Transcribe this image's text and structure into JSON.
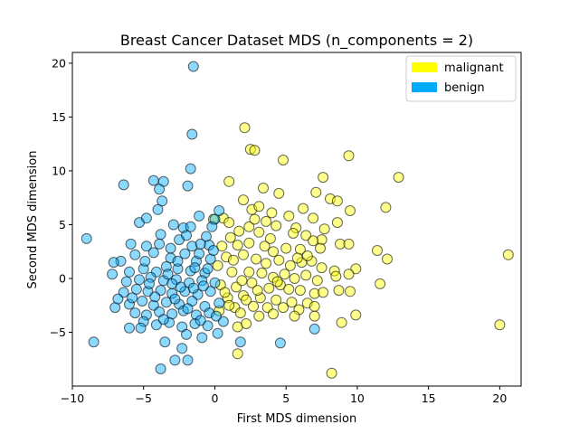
{
  "chart_data": {
    "type": "scatter",
    "title": "Breast Cancer Dataset MDS (n_components = 2)",
    "xlabel": "First MDS dimension",
    "ylabel": "Second MDS dimension",
    "xlim": [
      -10,
      21.5
    ],
    "ylim": [
      -10,
      21
    ],
    "xticks": [
      -10,
      -5,
      0,
      5,
      10,
      15,
      20
    ],
    "yticks": [
      -5,
      0,
      5,
      10,
      15,
      20
    ],
    "grid": false,
    "legend_position": "top-right",
    "series": [
      {
        "name": "malignant",
        "color": "#ffff00",
        "points": [
          [
            2.1,
            14.0
          ],
          [
            2.5,
            12.0
          ],
          [
            2.8,
            11.9
          ],
          [
            9.4,
            11.4
          ],
          [
            4.8,
            11.0
          ],
          [
            7.6,
            9.4
          ],
          [
            12.9,
            9.4
          ],
          [
            1.0,
            9.0
          ],
          [
            3.4,
            8.4
          ],
          [
            4.5,
            7.9
          ],
          [
            7.1,
            8.0
          ],
          [
            8.1,
            7.4
          ],
          [
            8.6,
            7.2
          ],
          [
            12.0,
            6.6
          ],
          [
            2.0,
            7.3
          ],
          [
            6.2,
            6.5
          ],
          [
            2.6,
            6.4
          ],
          [
            3.1,
            6.7
          ],
          [
            9.5,
            6.3
          ],
          [
            3.6,
            5.3
          ],
          [
            -0.1,
            5.5
          ],
          [
            0.6,
            5.6
          ],
          [
            1.0,
            5.2
          ],
          [
            5.2,
            5.8
          ],
          [
            6.9,
            5.6
          ],
          [
            8.6,
            5.2
          ],
          [
            5.7,
            4.7
          ],
          [
            7.7,
            4.6
          ],
          [
            2.4,
            4.8
          ],
          [
            4.3,
            4.9
          ],
          [
            1.7,
            4.4
          ],
          [
            3.1,
            4.3
          ],
          [
            5.5,
            4.2
          ],
          [
            6.4,
            4.0
          ],
          [
            7.5,
            3.6
          ],
          [
            8.8,
            3.2
          ],
          [
            9.4,
            3.2
          ],
          [
            0.5,
            3.0
          ],
          [
            1.6,
            3.1
          ],
          [
            2.4,
            3.3
          ],
          [
            3.5,
            3.0
          ],
          [
            4.1,
            2.5
          ],
          [
            5.0,
            2.8
          ],
          [
            6.0,
            2.7
          ],
          [
            6.9,
            3.5
          ],
          [
            7.4,
            2.8
          ],
          [
            11.4,
            2.6
          ],
          [
            20.6,
            2.2
          ],
          [
            12.1,
            1.8
          ],
          [
            0.8,
            2.0
          ],
          [
            1.3,
            1.7
          ],
          [
            2.0,
            2.2
          ],
          [
            2.9,
            1.8
          ],
          [
            3.6,
            1.4
          ],
          [
            4.5,
            1.7
          ],
          [
            5.3,
            1.2
          ],
          [
            6.1,
            1.5
          ],
          [
            6.8,
            1.6
          ],
          [
            7.5,
            1.0
          ],
          [
            8.4,
            0.7
          ],
          [
            9.9,
            0.9
          ],
          [
            1.2,
            0.6
          ],
          [
            2.4,
            0.6
          ],
          [
            3.3,
            0.5
          ],
          [
            4.1,
            0.1
          ],
          [
            4.9,
            0.4
          ],
          [
            5.6,
            0.0
          ],
          [
            6.4,
            0.3
          ],
          [
            7.2,
            -0.2
          ],
          [
            8.5,
            0.2
          ],
          [
            9.4,
            0.4
          ],
          [
            0.4,
            -0.6
          ],
          [
            1.5,
            -0.8
          ],
          [
            2.6,
            -0.4
          ],
          [
            3.8,
            -0.9
          ],
          [
            4.6,
            -0.6
          ],
          [
            5.2,
            -1.0
          ],
          [
            6.0,
            -1.1
          ],
          [
            7.0,
            -1.4
          ],
          [
            7.6,
            -1.3
          ],
          [
            8.7,
            -1.1
          ],
          [
            9.5,
            -1.2
          ],
          [
            11.6,
            -0.5
          ],
          [
            0.9,
            -1.8
          ],
          [
            2.0,
            -1.6
          ],
          [
            3.2,
            -1.8
          ],
          [
            4.3,
            -2.0
          ],
          [
            5.4,
            -2.2
          ],
          [
            6.5,
            -2.3
          ],
          [
            1.4,
            -2.7
          ],
          [
            2.7,
            -2.6
          ],
          [
            3.7,
            -2.7
          ],
          [
            4.8,
            -2.7
          ],
          [
            5.9,
            -2.9
          ],
          [
            7.0,
            -2.6
          ],
          [
            1.8,
            -3.2
          ],
          [
            3.1,
            -3.5
          ],
          [
            4.1,
            -3.3
          ],
          [
            5.6,
            -3.5
          ],
          [
            7.0,
            -3.5
          ],
          [
            9.9,
            -3.4
          ],
          [
            1.6,
            -4.5
          ],
          [
            2.2,
            -4.2
          ],
          [
            8.9,
            -4.1
          ],
          [
            20.0,
            -4.3
          ],
          [
            1.6,
            -7.0
          ],
          [
            8.2,
            -8.8
          ],
          [
            1.9,
            -0.2
          ],
          [
            3.0,
            -1.1
          ],
          [
            4.4,
            -0.3
          ],
          [
            5.8,
            1.9
          ],
          [
            2.2,
            -2.0
          ],
          [
            0.2,
            1.2
          ],
          [
            3.9,
            3.7
          ],
          [
            6.5,
            2.1
          ],
          [
            2.8,
            5.5
          ],
          [
            4.0,
            6.1
          ],
          [
            1.1,
            3.8
          ],
          [
            0.3,
            -3.0
          ],
          [
            1.0,
            -2.5
          ],
          [
            0.7,
            -1.3
          ]
        ]
      },
      {
        "name": "benign",
        "color": "#00aaff",
        "points": [
          [
            -1.5,
            19.7
          ],
          [
            -1.6,
            13.4
          ],
          [
            -1.7,
            10.2
          ],
          [
            -6.4,
            8.7
          ],
          [
            -4.3,
            9.1
          ],
          [
            -3.6,
            9.0
          ],
          [
            -3.9,
            8.3
          ],
          [
            -1.9,
            8.6
          ],
          [
            -3.7,
            7.2
          ],
          [
            -4.0,
            6.4
          ],
          [
            -1.1,
            5.8
          ],
          [
            -5.3,
            5.2
          ],
          [
            -4.8,
            5.6
          ],
          [
            0.0,
            5.5
          ],
          [
            -2.2,
            4.7
          ],
          [
            -1.7,
            4.8
          ],
          [
            -0.2,
            4.8
          ],
          [
            -9.0,
            3.7
          ],
          [
            -3.8,
            4.1
          ],
          [
            -2.5,
            3.6
          ],
          [
            -0.6,
            3.9
          ],
          [
            -5.9,
            3.2
          ],
          [
            -4.8,
            3.0
          ],
          [
            -3.1,
            2.8
          ],
          [
            -1.6,
            3.0
          ],
          [
            -0.4,
            3.1
          ],
          [
            -6.6,
            1.6
          ],
          [
            -5.6,
            2.2
          ],
          [
            -4.3,
            2.4
          ],
          [
            -3.1,
            1.9
          ],
          [
            -2.1,
            2.3
          ],
          [
            -1.3,
            1.6
          ],
          [
            -0.3,
            1.8
          ],
          [
            -7.1,
            1.5
          ],
          [
            -7.2,
            0.4
          ],
          [
            -6.0,
            0.6
          ],
          [
            -5.0,
            0.9
          ],
          [
            -4.1,
            0.6
          ],
          [
            -3.4,
            1.1
          ],
          [
            -2.6,
            0.9
          ],
          [
            -1.7,
            0.7
          ],
          [
            -0.7,
            0.5
          ],
          [
            -6.2,
            -0.3
          ],
          [
            -5.3,
            -0.1
          ],
          [
            -4.5,
            0.1
          ],
          [
            -3.6,
            -0.2
          ],
          [
            -2.7,
            -0.1
          ],
          [
            -1.8,
            -0.4
          ],
          [
            -0.9,
            -0.2
          ],
          [
            0.0,
            -0.4
          ],
          [
            -6.4,
            -1.3
          ],
          [
            -5.5,
            -1.0
          ],
          [
            -4.7,
            -1.2
          ],
          [
            -3.8,
            -1.1
          ],
          [
            -3.0,
            -1.4
          ],
          [
            -2.1,
            -1.2
          ],
          [
            -1.2,
            -1.5
          ],
          [
            -0.3,
            -1.2
          ],
          [
            -7.0,
            -2.7
          ],
          [
            -6.0,
            -2.4
          ],
          [
            -5.1,
            -2.1
          ],
          [
            -4.3,
            -2.5
          ],
          [
            -3.4,
            -2.2
          ],
          [
            -2.5,
            -2.4
          ],
          [
            -1.6,
            -2.1
          ],
          [
            -0.7,
            -2.6
          ],
          [
            0.3,
            -2.3
          ],
          [
            -5.6,
            -3.2
          ],
          [
            -4.8,
            -3.4
          ],
          [
            -3.9,
            -3.1
          ],
          [
            -3.0,
            -3.3
          ],
          [
            -2.2,
            -3.0
          ],
          [
            -1.3,
            -3.4
          ],
          [
            -0.4,
            -3.2
          ],
          [
            -6.0,
            -4.6
          ],
          [
            -5.0,
            -4.0
          ],
          [
            -4.1,
            -4.3
          ],
          [
            -3.2,
            -4.1
          ],
          [
            -2.3,
            -4.5
          ],
          [
            -1.4,
            -4.2
          ],
          [
            -0.5,
            -4.4
          ],
          [
            0.6,
            -4.0
          ],
          [
            -8.5,
            -5.9
          ],
          [
            -3.5,
            -5.9
          ],
          [
            -2.0,
            -5.2
          ],
          [
            -0.9,
            -5.5
          ],
          [
            0.2,
            -5.1
          ],
          [
            1.8,
            -5.9
          ],
          [
            -2.3,
            -6.5
          ],
          [
            -2.8,
            -7.6
          ],
          [
            -1.9,
            -7.6
          ],
          [
            -3.8,
            -8.4
          ],
          [
            4.6,
            -6.0
          ],
          [
            7.0,
            -4.7
          ],
          [
            0.3,
            6.3
          ],
          [
            -1.0,
            3.2
          ],
          [
            -2.9,
            5.0
          ],
          [
            -0.1,
            2.6
          ],
          [
            -4.6,
            -0.5
          ],
          [
            -3.3,
            0.4
          ],
          [
            -2.4,
            -0.8
          ],
          [
            -1.5,
            -0.9
          ],
          [
            -0.5,
            0.9
          ],
          [
            -5.8,
            -1.8
          ],
          [
            -4.2,
            -1.7
          ],
          [
            -2.8,
            -1.9
          ],
          [
            -1.9,
            -2.8
          ],
          [
            -1.0,
            -3.9
          ],
          [
            0.1,
            -3.5
          ],
          [
            -3.6,
            -3.8
          ],
          [
            -2.6,
            1.6
          ],
          [
            -1.1,
            2.3
          ],
          [
            -4.9,
            1.6
          ],
          [
            -6.8,
            -1.9
          ],
          [
            -5.2,
            -4.6
          ],
          [
            -3.9,
            3.2
          ],
          [
            -2.0,
            4.0
          ],
          [
            -0.8,
            -0.7
          ],
          [
            -1.4,
            1.0
          ],
          [
            -3.0,
            -0.5
          ]
        ]
      }
    ]
  }
}
